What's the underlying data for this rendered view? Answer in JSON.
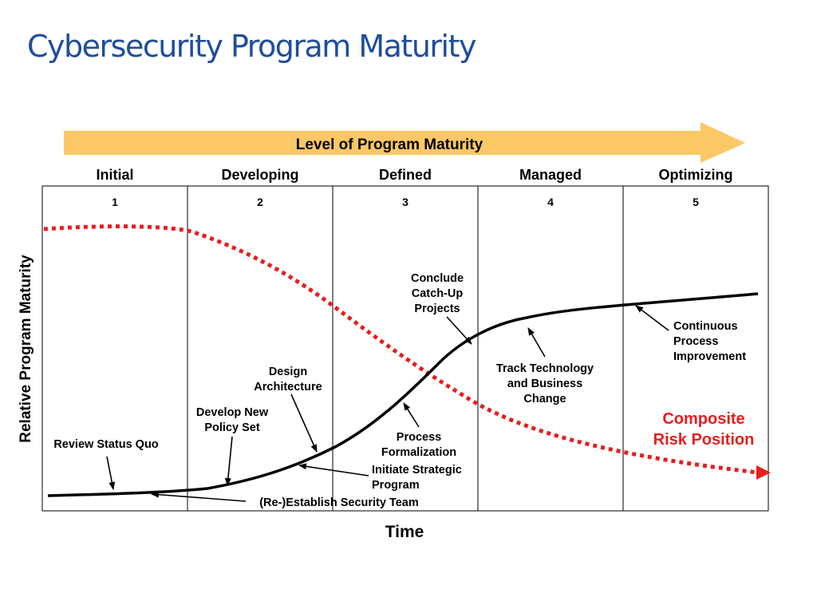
{
  "title": "Cybersecurity Program Maturity",
  "banner": "Level of Program Maturity",
  "stages": [
    {
      "name": "Initial",
      "number": "1"
    },
    {
      "name": "Developing",
      "number": "2"
    },
    {
      "name": "Defined",
      "number": "3"
    },
    {
      "name": "Managed",
      "number": "4"
    },
    {
      "name": "Optimizing",
      "number": "5"
    }
  ],
  "y_axis_label": "Relative Program Maturity",
  "x_axis_label": "Time",
  "milestones": {
    "review_status_quo": [
      "Review Status Quo"
    ],
    "develop_policy": [
      "Develop New",
      "Policy Set"
    ],
    "design_architecture": [
      "Design",
      "Architecture"
    ],
    "reestablish_team": [
      "(Re-)Establish Security Team"
    ],
    "initiate_program": [
      "Initiate Strategic",
      "Program"
    ],
    "process_formalization": [
      "Process",
      "Formalization"
    ],
    "conclude_catchup": [
      "Conclude",
      "Catch-Up",
      "Projects"
    ],
    "track_technology": [
      "Track Technology",
      "and Business",
      "Change"
    ],
    "continuous_improvement": [
      "Continuous",
      "Process",
      "Improvement"
    ]
  },
  "risk_label": [
    "Composite",
    "Risk Position"
  ],
  "colors": {
    "title": "#1f4e9a",
    "banner_arrow": "#fac864",
    "maturity_curve": "#000000",
    "risk_curve": "#e61e1e",
    "risk_label": "#e61e1e",
    "grid_lines": "#000000"
  }
}
